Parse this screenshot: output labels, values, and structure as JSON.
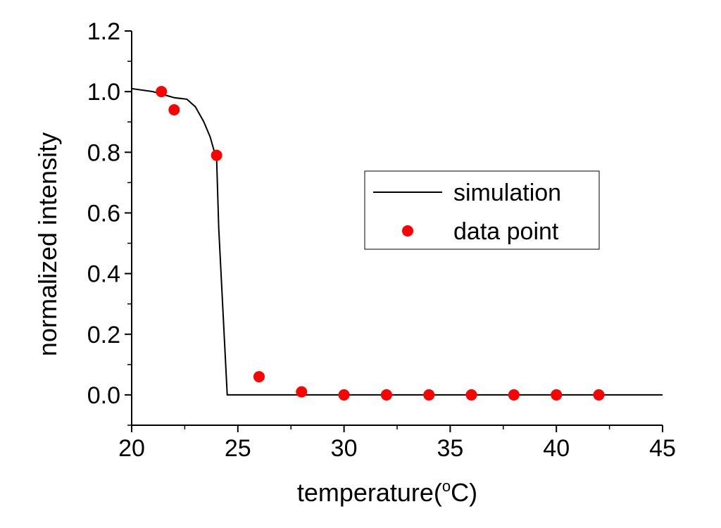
{
  "chart_data": {
    "type": "scatter",
    "xlabel": "temperature(",
    "xlabel_degree": "o",
    "xlabel_unit": "C)",
    "ylabel": "normalized intensity",
    "xlim": [
      20,
      45
    ],
    "ylim": [
      -0.1,
      1.2
    ],
    "xticks": [
      "20",
      "25",
      "30",
      "35",
      "40",
      "45"
    ],
    "yticks": [
      "0.0",
      "0.2",
      "0.4",
      "0.6",
      "0.8",
      "1.0",
      "1.2"
    ],
    "grid": false,
    "legend_position": "center-right",
    "series": [
      {
        "name": "simulation",
        "kind": "line",
        "color": "#000000",
        "x": [
          20,
          21,
          22,
          22.6,
          23,
          23.4,
          23.7,
          23.9,
          24.0,
          24.1,
          24.5,
          45
        ],
        "y": [
          1.01,
          1.0,
          0.98,
          0.975,
          0.95,
          0.9,
          0.85,
          0.8,
          0.78,
          0.55,
          0.0,
          0.0
        ]
      },
      {
        "name": "data point",
        "kind": "scatter",
        "color": "#ff0000",
        "x": [
          21.4,
          22.0,
          24.0,
          26.0,
          28.0,
          30.0,
          32.0,
          34.0,
          36.0,
          38.0,
          40.0,
          42.0
        ],
        "y": [
          1.0,
          0.94,
          0.79,
          0.06,
          0.01,
          0.0,
          0.0,
          0.0,
          0.0,
          0.0,
          0.0,
          0.0
        ]
      }
    ]
  }
}
